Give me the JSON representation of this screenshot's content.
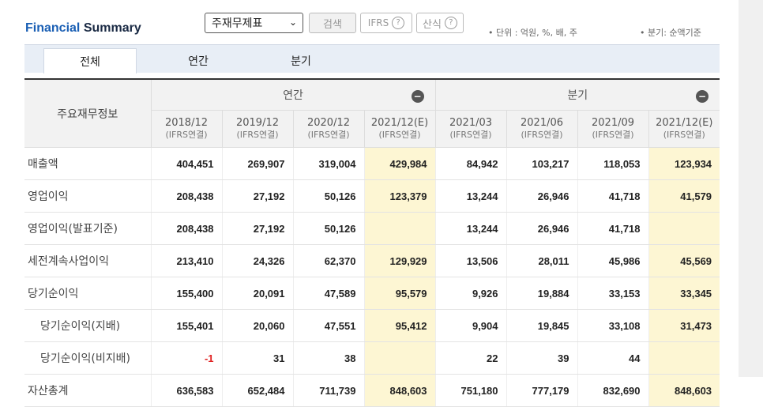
{
  "header": {
    "title_accent": "Financial",
    "title_rest": "Summary",
    "select_value": "주재무제표",
    "search_label": "검색",
    "ifrs_label": "IFRS",
    "formula_label": "산식",
    "unit_note": "• 단위 : 억원, %, 배, 주",
    "quarter_note": "• 분기: 순액기준"
  },
  "tabs": [
    "전체",
    "연간",
    "분기"
  ],
  "table": {
    "corner": "주요재무정보",
    "group_annual": "연간",
    "group_quarter": "분기",
    "columns": [
      {
        "period": "2018/12",
        "basis": "(IFRS연결)"
      },
      {
        "period": "2019/12",
        "basis": "(IFRS연결)"
      },
      {
        "period": "2020/12",
        "basis": "(IFRS연결)"
      },
      {
        "period": "2021/12(E)",
        "basis": "(IFRS연결)"
      },
      {
        "period": "2021/03",
        "basis": "(IFRS연결)"
      },
      {
        "period": "2021/06",
        "basis": "(IFRS연결)"
      },
      {
        "period": "2021/09",
        "basis": "(IFRS연결)"
      },
      {
        "period": "2021/12(E)",
        "basis": "(IFRS연결)"
      }
    ],
    "rows": [
      {
        "label": "매출액",
        "indent": false,
        "values": [
          "404,451",
          "269,907",
          "319,004",
          "429,984",
          "84,942",
          "103,217",
          "118,053",
          "123,934"
        ]
      },
      {
        "label": "영업이익",
        "indent": false,
        "values": [
          "208,438",
          "27,192",
          "50,126",
          "123,379",
          "13,244",
          "26,946",
          "41,718",
          "41,579"
        ]
      },
      {
        "label": "영업이익(발표기준)",
        "indent": false,
        "values": [
          "208,438",
          "27,192",
          "50,126",
          "",
          "13,244",
          "26,946",
          "41,718",
          ""
        ]
      },
      {
        "label": "세전계속사업이익",
        "indent": false,
        "values": [
          "213,410",
          "24,326",
          "62,370",
          "129,929",
          "13,506",
          "28,011",
          "45,986",
          "45,569"
        ]
      },
      {
        "label": "당기순이익",
        "indent": false,
        "values": [
          "155,400",
          "20,091",
          "47,589",
          "95,579",
          "9,926",
          "19,884",
          "33,153",
          "33,345"
        ]
      },
      {
        "label": "당기순이익(지배)",
        "indent": true,
        "values": [
          "155,401",
          "20,060",
          "47,551",
          "95,412",
          "9,904",
          "19,845",
          "33,108",
          "31,473"
        ]
      },
      {
        "label": "당기순이익(비지배)",
        "indent": true,
        "values": [
          "-1",
          "31",
          "38",
          "",
          "22",
          "39",
          "44",
          ""
        ]
      },
      {
        "label": "자산총계",
        "indent": false,
        "values": [
          "636,583",
          "652,484",
          "711,739",
          "848,603",
          "751,180",
          "777,179",
          "832,690",
          "848,603"
        ]
      }
    ]
  }
}
